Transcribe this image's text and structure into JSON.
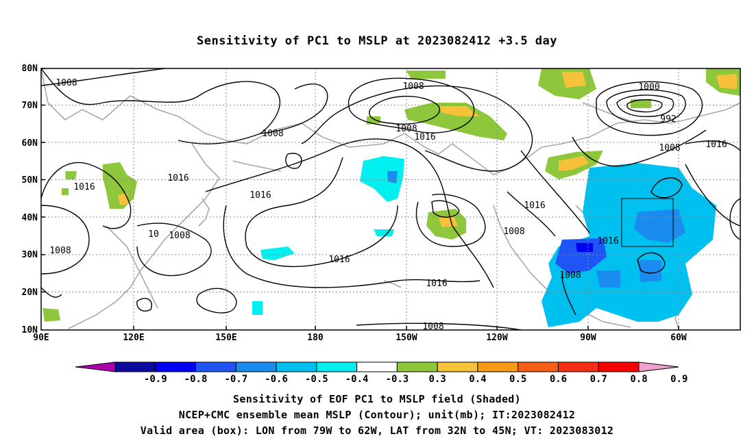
{
  "title": "Sensitivity of PC1 to MSLP at 2023082412 +3.5 day",
  "lat_labels": [
    "80N",
    "70N",
    "60N",
    "50N",
    "40N",
    "30N",
    "20N",
    "10N"
  ],
  "lon_labels": [
    "90E",
    "120E",
    "150E",
    "180",
    "150W",
    "120W",
    "90W",
    "60W"
  ],
  "contour_labels": [
    "1008",
    "1008",
    "1008",
    "1008",
    "1016",
    "1016",
    "1016",
    "1016",
    "1016",
    "1016",
    "1016",
    "1000",
    "992",
    "1008",
    "1016",
    "10",
    "1008",
    "1008",
    "1008",
    "1016",
    "1008",
    "1008",
    "1008"
  ],
  "colorbar": {
    "ticks": [
      "-0.9",
      "-0.8",
      "-0.7",
      "-0.6",
      "-0.5",
      "-0.4",
      "-0.3",
      "0.3",
      "0.4",
      "0.5",
      "0.6",
      "0.7",
      "0.8",
      "0.9"
    ],
    "colors": [
      "#ac00ac",
      "#0a0a9e",
      "#0000f5",
      "#1f55f5",
      "#1a8cf0",
      "#00c0f0",
      "#00f0f0",
      "#ffffff",
      "#8ec63c",
      "#f7c23a",
      "#f79a14",
      "#f76014",
      "#f72f14",
      "#f70000",
      "#f2a0d0"
    ]
  },
  "captions": {
    "line1": "Sensitivity of EOF PC1 to MSLP field (Shaded)",
    "line2": "NCEP+CMC ensemble mean MSLP (Contour); unit(mb); IT:2023082412",
    "line3": "Valid area (box): LON from 79W to 62W, LAT from 32N to 45N; VT: 2023083012"
  },
  "valid_box": {
    "lon_from": "79W",
    "lon_to": "62W",
    "lat_from": "32N",
    "lat_to": "45N"
  }
}
